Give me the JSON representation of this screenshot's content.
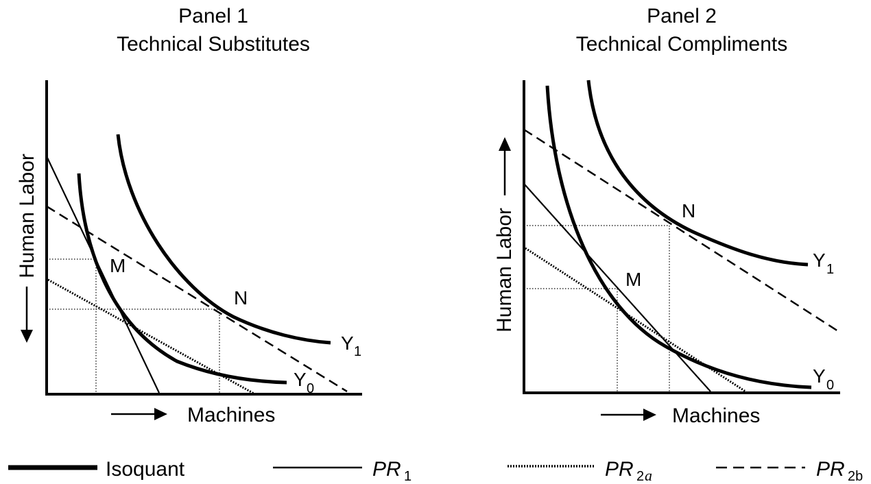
{
  "panel1": {
    "title": "Panel 1",
    "subtitle": "Technical Substitutes",
    "ylabel": "Human Labor",
    "xlabel": "Machines",
    "point_m": "M",
    "point_n": "N",
    "curve_y1": "Y",
    "curve_y1_sub": "1",
    "curve_y0": "Y",
    "curve_y0_sub": "0"
  },
  "panel2": {
    "title": "Panel 2",
    "subtitle": "Technical Compliments",
    "ylabel": "Human Labor",
    "xlabel": "Machines",
    "point_m": "M",
    "point_n": "N",
    "curve_y1": "Y",
    "curve_y1_sub": "1",
    "curve_y0": "Y",
    "curve_y0_sub": "0"
  },
  "legend": {
    "isoquant": "Isoquant",
    "pr1": "PR",
    "pr1_sub": "1",
    "pr2a": "PR",
    "pr2a_sub1": "2",
    "pr2a_sub2": "a",
    "pr2b": "PR",
    "pr2b_sub": "2b"
  }
}
